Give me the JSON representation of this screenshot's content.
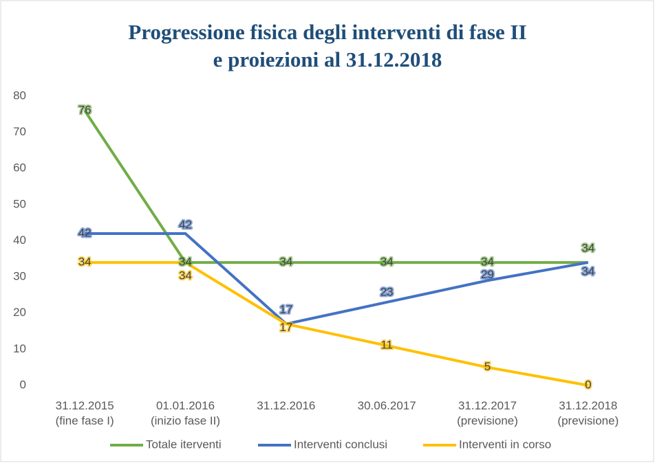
{
  "chart_data": {
    "type": "line",
    "title": [
      "Progressione fisica degli interventi di fase II",
      "e proiezioni al 31.12.2018"
    ],
    "categories": [
      "31.12.2015\n(fine fase I)",
      "01.01.2016\n(inizio fase II)",
      "31.12.2016",
      "30.06.2017",
      "31.12.2017\n(previsione)",
      "31.12.2018\n(previsione)"
    ],
    "series": [
      {
        "name": "Totale iterventi",
        "color": "#70ad47",
        "values": [
          76,
          34,
          34,
          34,
          34,
          34
        ]
      },
      {
        "name": "Interventi conclusi",
        "color": "#4472c4",
        "values": [
          42,
          42,
          17,
          23,
          29,
          34
        ]
      },
      {
        "name": "Interventi in corso",
        "color": "#ffc000",
        "values": [
          34,
          34,
          17,
          11,
          5,
          0
        ]
      }
    ],
    "ylim": [
      0,
      80
    ],
    "yticks": [
      0,
      10,
      20,
      30,
      40,
      50,
      60,
      70,
      80
    ],
    "grid": false,
    "legend": "bottom"
  }
}
